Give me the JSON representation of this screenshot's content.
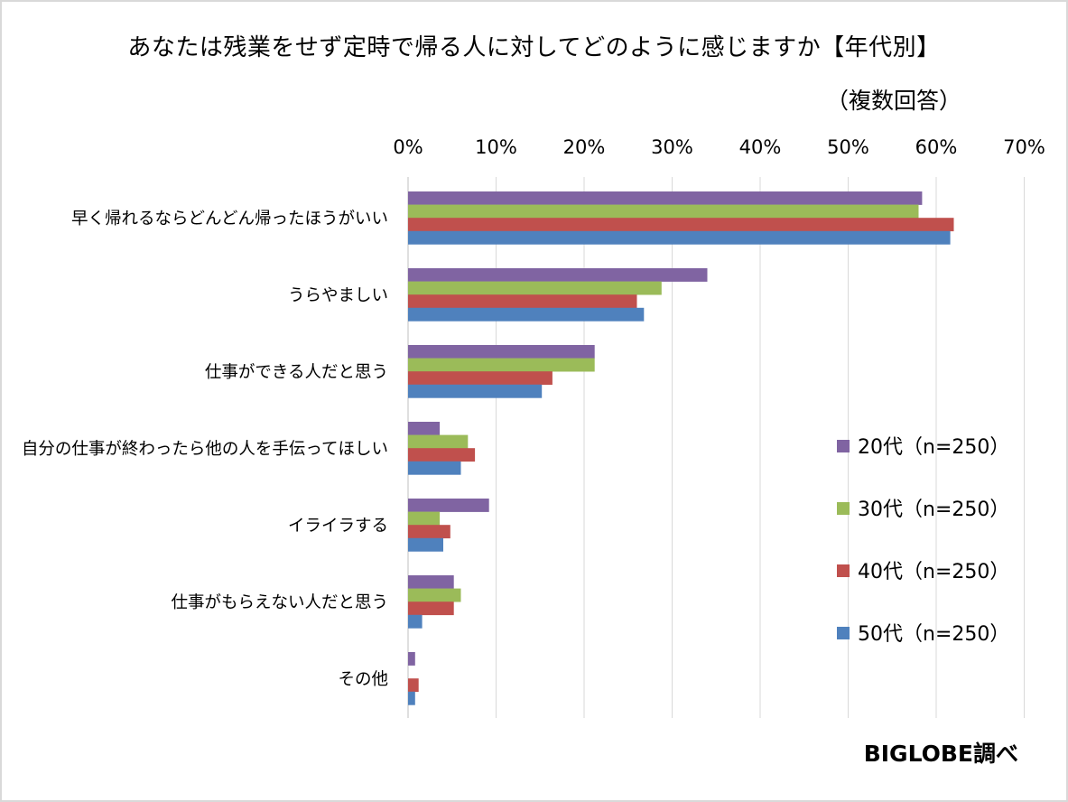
{
  "title": "あなたは残業をせず定時で帰る人に対してどのように感じますか【年代別】",
  "subtitle": "（複数回答）",
  "credit": "BIGLOBE調べ",
  "chart_data": {
    "type": "bar",
    "orientation": "horizontal",
    "categories": [
      "早く帰れるならどんどん帰ったほうがいい",
      "うらやましい",
      "仕事ができる人だと思う",
      "自分の仕事が終わったら他の人を手伝ってほしい",
      "イライラする",
      "仕事がもらえない人だと思う",
      "その他"
    ],
    "series": [
      {
        "name": "20代（n=250）",
        "color": "#8064a2",
        "values": [
          58.4,
          34.0,
          21.2,
          3.6,
          9.2,
          5.2,
          0.8
        ]
      },
      {
        "name": "30代（n=250）",
        "color": "#9bbb59",
        "values": [
          58.0,
          28.8,
          21.2,
          6.8,
          3.6,
          6.0,
          0
        ]
      },
      {
        "name": "40代（n=250）",
        "color": "#c0504d",
        "values": [
          62.0,
          26.0,
          16.4,
          7.6,
          4.8,
          5.2,
          1.2
        ]
      },
      {
        "name": "50代（n=250）",
        "color": "#4f81bd",
        "values": [
          61.6,
          26.8,
          15.2,
          6.0,
          4.0,
          1.6,
          0.8
        ]
      }
    ],
    "xlim": [
      0,
      70
    ],
    "tick_labels": [
      "0%",
      "10%",
      "20%",
      "30%",
      "40%",
      "50%",
      "60%",
      "70%"
    ],
    "grid": true,
    "legend_position": "right-middle"
  }
}
